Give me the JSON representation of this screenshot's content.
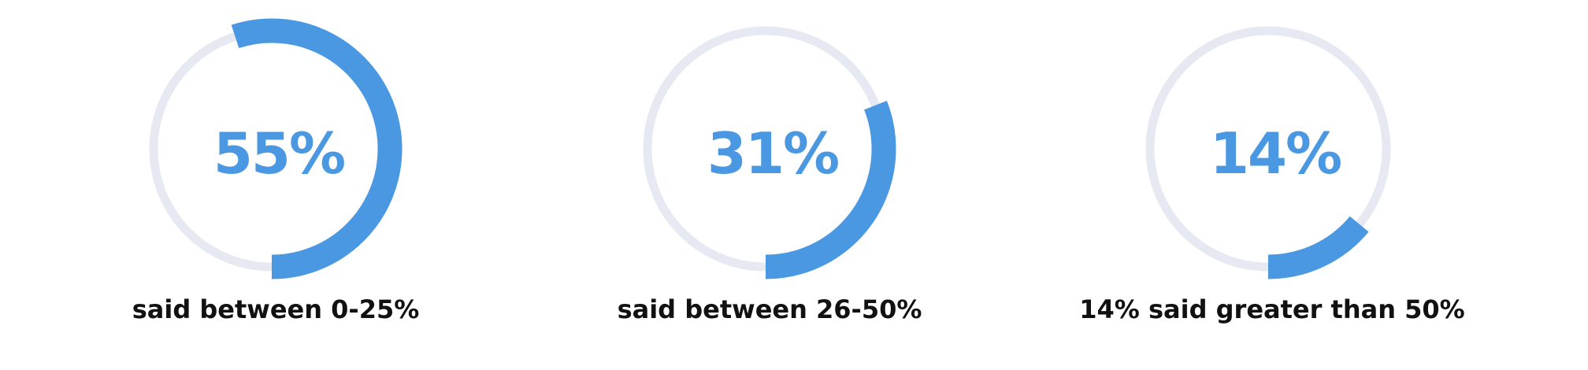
{
  "chart_data": [
    {
      "type": "donut",
      "value": 55,
      "label": "55%",
      "caption": "said between 0-25%"
    },
    {
      "type": "donut",
      "value": 31,
      "label": "31%",
      "caption": "said between 26-50%"
    },
    {
      "type": "donut",
      "value": 14,
      "label": "14%",
      "caption": "14% said greater than 50%"
    }
  ],
  "colors": {
    "progress": "#4a98e1",
    "track": "#e6e9f2",
    "caption_text": "#111111"
  }
}
